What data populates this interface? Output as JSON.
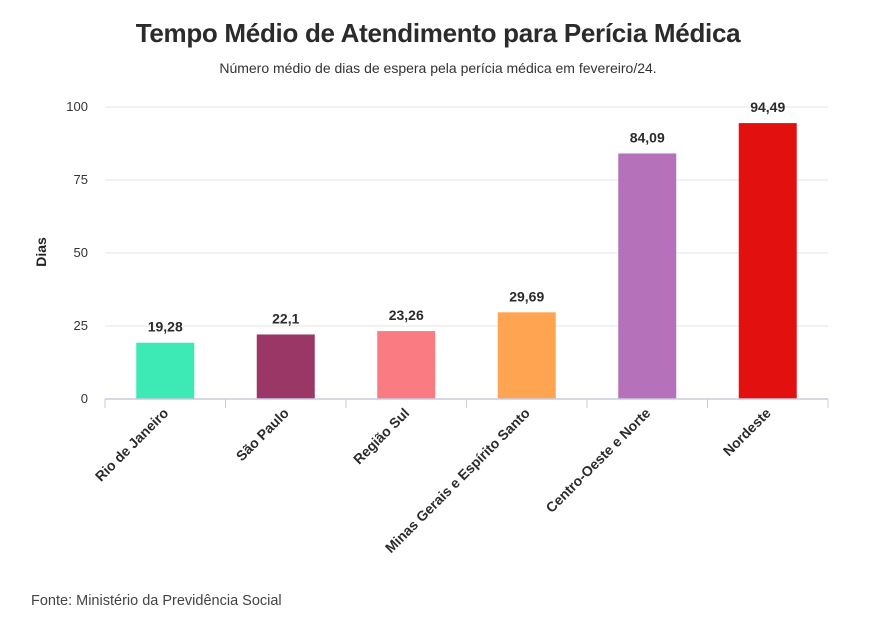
{
  "chart_data": {
    "type": "bar",
    "title": "Tempo Médio de Atendimento para Perícia Médica",
    "subtitle": "Número médio de dias de espera pela perícia médica em fevereiro/24.",
    "ylabel": "Dias",
    "xlabel": "",
    "ylim": [
      0,
      100
    ],
    "yticks": [
      0,
      25,
      50,
      75,
      100
    ],
    "grid": true,
    "categories": [
      "Rio de Janeiro",
      "São Paulo",
      "Região Sul",
      "Minas Gerais e Espírito Santo",
      "Centro-Oeste e Norte",
      "Nordeste"
    ],
    "values": [
      19.28,
      22.1,
      23.26,
      29.69,
      84.09,
      94.49
    ],
    "value_labels": [
      "19,28",
      "22,1",
      "23,26",
      "29,69",
      "84,09",
      "94,49"
    ],
    "colors": [
      "#3deab5",
      "#9b3766",
      "#fb7b83",
      "#ffa552",
      "#b571b9",
      "#e2100f"
    ],
    "source": "Fonte: Ministério da Previdência Social"
  }
}
